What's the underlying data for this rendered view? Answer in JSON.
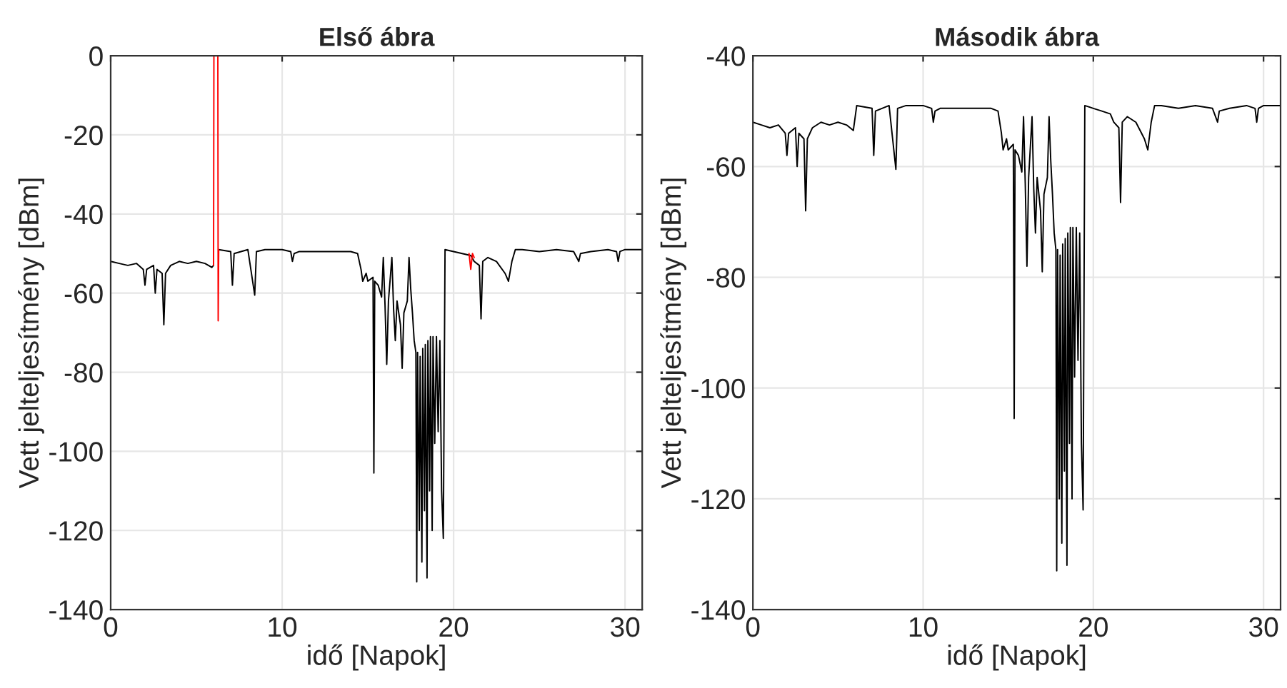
{
  "chart_data": [
    {
      "type": "line",
      "title": "Első ábra",
      "xlabel": "idő [Napok]",
      "ylabel": "Vett jelteljesítmény [dBm]",
      "xlim": [
        0,
        31
      ],
      "ylim": [
        -140,
        0
      ],
      "xticks": [
        0,
        10,
        20,
        30
      ],
      "yticks": [
        -140,
        -120,
        -100,
        -80,
        -60,
        -40,
        -20,
        0
      ],
      "grid": true,
      "legend": false,
      "line_style": "solid",
      "marker": "none",
      "series": [
        {
          "color": "#000000",
          "x": [
            0,
            0.5,
            1,
            1.5,
            1.9,
            2.0,
            2.1,
            2.5,
            2.6,
            2.7,
            3.0,
            3.1,
            3.2,
            3.5,
            4,
            4.5,
            5,
            5.5,
            5.9,
            6.0,
            6.15,
            6.3,
            7,
            7.1,
            7.2,
            8,
            8.4,
            8.5,
            9,
            9.5,
            10,
            10.5,
            10.6,
            10.7,
            11,
            12,
            13,
            14,
            14.4,
            14.6,
            14.7,
            14.9,
            15,
            15.3,
            15.35,
            15.4,
            15.6,
            15.8,
            15.9,
            16.0,
            16.1,
            16.2,
            16.4,
            16.5,
            16.6,
            16.7,
            16.9,
            17.0,
            17.1,
            17.3,
            17.4,
            17.5,
            17.6,
            17.7,
            17.8,
            17.85,
            17.9,
            18.0,
            18.05,
            18.15,
            18.2,
            18.3,
            18.35,
            18.45,
            18.5,
            18.6,
            18.65,
            18.75,
            18.8,
            18.9,
            19.0,
            19.1,
            19.2,
            19.3,
            19.4,
            19.5,
            20,
            20.5,
            21,
            21.2,
            21.5,
            21.6,
            21.7,
            22,
            22.5,
            23,
            23.2,
            23.4,
            23.6,
            24,
            25,
            26,
            27,
            27.3,
            27.4,
            28,
            29,
            29.5,
            29.6,
            29.7,
            30,
            31
          ],
          "values": [
            -52,
            -52.5,
            -53,
            -52.5,
            -54,
            -58,
            -54,
            -53,
            -60,
            -54,
            -55,
            -68,
            -55,
            -53,
            -52,
            -52.5,
            -52,
            -52.5,
            -53.5,
            -53,
            null,
            -49,
            -49.5,
            -58,
            -50,
            -49,
            -60.5,
            -49.5,
            -49,
            -49,
            -49,
            -49.5,
            -52,
            -50,
            -49.5,
            -49.5,
            -49.5,
            -49.5,
            -50,
            -54,
            -57,
            -55,
            -57,
            -56,
            -105.5,
            -57,
            -58,
            -61,
            -51,
            -63,
            -78,
            -62,
            -51,
            -64,
            -72,
            -62,
            -68,
            -79,
            -65,
            -62,
            -51,
            -59,
            -65,
            -72,
            -75,
            -133,
            -75,
            -120,
            -76,
            -128,
            -74,
            -115,
            -73,
            -132,
            -72,
            -110,
            -71,
            -120,
            -71,
            -98,
            -71,
            -95,
            -72,
            -110,
            -122,
            -49,
            -49.5,
            -50,
            -50.5,
            -52,
            -53,
            -66.5,
            -52,
            -51,
            -52,
            -55,
            -57,
            -52,
            -49,
            -49,
            -49.5,
            -49,
            -49.5,
            -52,
            -50,
            -49.5,
            -49,
            -49.5,
            -52,
            -49.5,
            -49,
            -49
          ]
        },
        {
          "color": "#ff0000",
          "x": [
            6.0,
            6.02,
            6.25,
            6.27,
            6.3
          ],
          "values": [
            -53,
            0,
            0,
            -67,
            -49
          ]
        },
        {
          "color": "#ff0000",
          "x": [
            20.9,
            21.0,
            21.1,
            21.2
          ],
          "values": [
            -50,
            -54,
            -50,
            -51
          ]
        }
      ]
    },
    {
      "type": "line",
      "title": "Második ábra",
      "xlabel": "idő [Napok]",
      "ylabel": "Vett jelteljesítmény [dBm]",
      "xlim": [
        0,
        31
      ],
      "ylim": [
        -140,
        -40
      ],
      "xticks": [
        0,
        10,
        20,
        30
      ],
      "yticks": [
        -140,
        -120,
        -100,
        -80,
        -60,
        -40
      ],
      "grid": true,
      "legend": false,
      "line_style": "solid",
      "marker": "none",
      "series": [
        {
          "color": "#000000",
          "x": [
            0,
            0.5,
            1,
            1.5,
            1.9,
            2.0,
            2.1,
            2.5,
            2.6,
            2.7,
            3.0,
            3.1,
            3.2,
            3.5,
            4,
            4.5,
            5,
            5.5,
            5.9,
            6.1,
            7,
            7.1,
            7.2,
            8,
            8.4,
            8.5,
            9,
            9.5,
            10,
            10.5,
            10.6,
            10.7,
            11,
            12,
            13,
            14,
            14.4,
            14.6,
            14.7,
            14.9,
            15,
            15.3,
            15.35,
            15.4,
            15.6,
            15.8,
            15.9,
            16.0,
            16.1,
            16.2,
            16.4,
            16.5,
            16.6,
            16.7,
            16.9,
            17.0,
            17.1,
            17.3,
            17.4,
            17.5,
            17.6,
            17.7,
            17.8,
            17.85,
            17.9,
            18.0,
            18.05,
            18.15,
            18.2,
            18.3,
            18.35,
            18.45,
            18.5,
            18.6,
            18.65,
            18.75,
            18.8,
            18.9,
            19.0,
            19.1,
            19.2,
            19.3,
            19.4,
            19.5,
            20,
            20.5,
            21,
            21.2,
            21.5,
            21.6,
            21.7,
            22,
            22.5,
            23,
            23.2,
            23.4,
            23.6,
            24,
            25,
            26,
            27,
            27.3,
            27.4,
            28,
            29,
            29.5,
            29.6,
            29.7,
            30,
            31
          ],
          "values": [
            -52,
            -52.5,
            -53,
            -52.5,
            -54,
            -58,
            -54,
            -53,
            -60,
            -54,
            -55,
            -68,
            -55,
            -53,
            -52,
            -52.5,
            -52,
            -52.5,
            -53.5,
            -49,
            -49.5,
            -58,
            -50,
            -49,
            -60.5,
            -49.5,
            -49,
            -49,
            -49,
            -49.5,
            -52,
            -50,
            -49.5,
            -49.5,
            -49.5,
            -49.5,
            -50,
            -54,
            -57,
            -55,
            -57,
            -56,
            -105.5,
            -57,
            -58,
            -61,
            -51,
            -63,
            -78,
            -62,
            -51,
            -64,
            -72,
            -62,
            -68,
            -79,
            -65,
            -62,
            -51,
            -59,
            -65,
            -72,
            -75,
            -133,
            -75,
            -120,
            -76,
            -128,
            -74,
            -115,
            -73,
            -132,
            -72,
            -110,
            -71,
            -120,
            -71,
            -98,
            -71,
            -95,
            -72,
            -110,
            -122,
            -49,
            -49.5,
            -50,
            -50.5,
            -52,
            -53,
            -66.5,
            -52,
            -51,
            -52,
            -55,
            -57,
            -52,
            -49,
            -49,
            -49.5,
            -49,
            -49.5,
            -52,
            -50,
            -49.5,
            -49,
            -49.5,
            -52,
            -49.5,
            -49,
            -49
          ]
        }
      ]
    }
  ]
}
